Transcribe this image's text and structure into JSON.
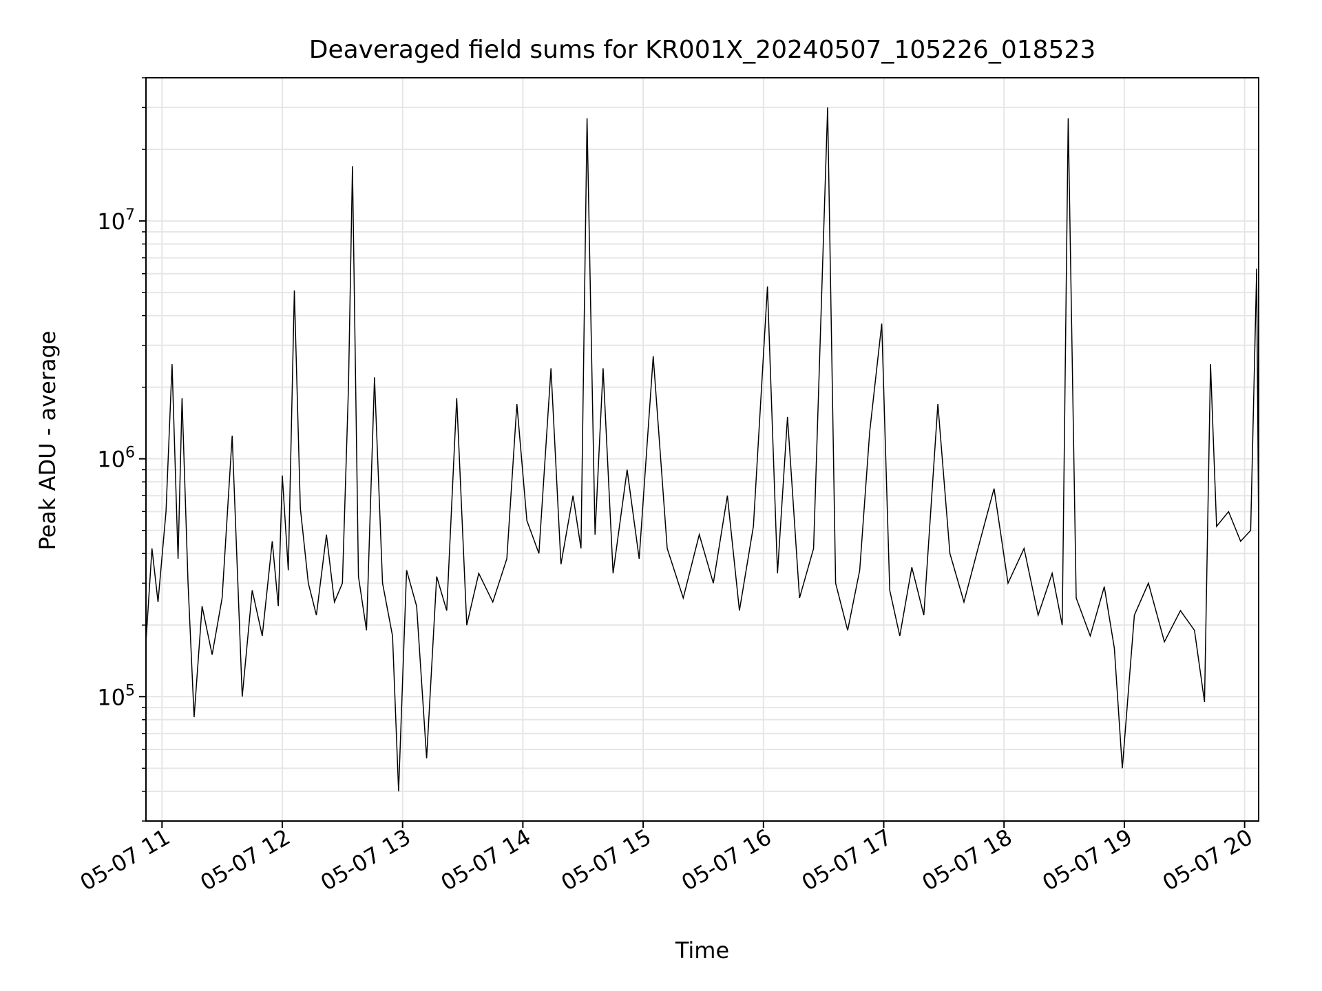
{
  "chart_data": {
    "type": "line",
    "title": "Deaveraged field sums for KR001X_20240507_105226_018523",
    "xlabel": "Time",
    "ylabel": "Peak ADU - average",
    "yscale": "log",
    "grid": true,
    "xlim": [
      "2024-05-07 10:52",
      "2024-05-07 20:07"
    ],
    "ylim": [
      30000,
      40000000
    ],
    "xticks": [
      {
        "t": "2024-05-07 11:00",
        "label": "05-07 11"
      },
      {
        "t": "2024-05-07 12:00",
        "label": "05-07 12"
      },
      {
        "t": "2024-05-07 13:00",
        "label": "05-07 13"
      },
      {
        "t": "2024-05-07 14:00",
        "label": "05-07 14"
      },
      {
        "t": "2024-05-07 15:00",
        "label": "05-07 15"
      },
      {
        "t": "2024-05-07 16:00",
        "label": "05-07 16"
      },
      {
        "t": "2024-05-07 17:00",
        "label": "05-07 17"
      },
      {
        "t": "2024-05-07 18:00",
        "label": "05-07 18"
      },
      {
        "t": "2024-05-07 19:00",
        "label": "05-07 19"
      },
      {
        "t": "2024-05-07 20:00",
        "label": "05-07 20"
      }
    ],
    "yticks": [
      {
        "v": 100000,
        "base": "10",
        "exp": "5"
      },
      {
        "v": 1000000,
        "base": "10",
        "exp": "6"
      },
      {
        "v": 10000000,
        "base": "10",
        "exp": "7"
      }
    ],
    "line_color": "#000000",
    "series": [
      {
        "points": [
          [
            "2024-05-07 10:52",
            170000
          ],
          [
            "2024-05-07 10:55",
            420000
          ],
          [
            "2024-05-07 10:58",
            250000
          ],
          [
            "2024-05-07 11:02",
            600000
          ],
          [
            "2024-05-07 11:05",
            2500000
          ],
          [
            "2024-05-07 11:08",
            380000
          ],
          [
            "2024-05-07 11:10",
            1800000
          ],
          [
            "2024-05-07 11:13",
            300000
          ],
          [
            "2024-05-07 11:16",
            82000
          ],
          [
            "2024-05-07 11:20",
            240000
          ],
          [
            "2024-05-07 11:25",
            150000
          ],
          [
            "2024-05-07 11:30",
            260000
          ],
          [
            "2024-05-07 11:35",
            1250000
          ],
          [
            "2024-05-07 11:40",
            100000
          ],
          [
            "2024-05-07 11:45",
            280000
          ],
          [
            "2024-05-07 11:50",
            180000
          ],
          [
            "2024-05-07 11:55",
            450000
          ],
          [
            "2024-05-07 11:58",
            240000
          ],
          [
            "2024-05-07 12:00",
            850000
          ],
          [
            "2024-05-07 12:03",
            340000
          ],
          [
            "2024-05-07 12:06",
            5100000
          ],
          [
            "2024-05-07 12:09",
            620000
          ],
          [
            "2024-05-07 12:13",
            300000
          ],
          [
            "2024-05-07 12:17",
            220000
          ],
          [
            "2024-05-07 12:22",
            480000
          ],
          [
            "2024-05-07 12:26",
            250000
          ],
          [
            "2024-05-07 12:30",
            300000
          ],
          [
            "2024-05-07 12:33",
            2000000
          ],
          [
            "2024-05-07 12:35",
            17000000
          ],
          [
            "2024-05-07 12:38",
            320000
          ],
          [
            "2024-05-07 12:42",
            190000
          ],
          [
            "2024-05-07 12:46",
            2200000
          ],
          [
            "2024-05-07 12:50",
            300000
          ],
          [
            "2024-05-07 12:55",
            180000
          ],
          [
            "2024-05-07 12:58",
            40000
          ],
          [
            "2024-05-07 13:02",
            340000
          ],
          [
            "2024-05-07 13:07",
            240000
          ],
          [
            "2024-05-07 13:12",
            55000
          ],
          [
            "2024-05-07 13:17",
            320000
          ],
          [
            "2024-05-07 13:22",
            230000
          ],
          [
            "2024-05-07 13:27",
            1800000
          ],
          [
            "2024-05-07 13:32",
            200000
          ],
          [
            "2024-05-07 13:38",
            330000
          ],
          [
            "2024-05-07 13:45",
            250000
          ],
          [
            "2024-05-07 13:52",
            380000
          ],
          [
            "2024-05-07 13:57",
            1700000
          ],
          [
            "2024-05-07 14:02",
            550000
          ],
          [
            "2024-05-07 14:08",
            400000
          ],
          [
            "2024-05-07 14:14",
            2400000
          ],
          [
            "2024-05-07 14:19",
            360000
          ],
          [
            "2024-05-07 14:25",
            700000
          ],
          [
            "2024-05-07 14:29",
            420000
          ],
          [
            "2024-05-07 14:32",
            27000000
          ],
          [
            "2024-05-07 14:36",
            480000
          ],
          [
            "2024-05-07 14:40",
            2400000
          ],
          [
            "2024-05-07 14:45",
            330000
          ],
          [
            "2024-05-07 14:52",
            900000
          ],
          [
            "2024-05-07 14:58",
            380000
          ],
          [
            "2024-05-07 15:05",
            2700000
          ],
          [
            "2024-05-07 15:12",
            420000
          ],
          [
            "2024-05-07 15:20",
            260000
          ],
          [
            "2024-05-07 15:28",
            480000
          ],
          [
            "2024-05-07 15:35",
            300000
          ],
          [
            "2024-05-07 15:42",
            700000
          ],
          [
            "2024-05-07 15:48",
            230000
          ],
          [
            "2024-05-07 15:55",
            520000
          ],
          [
            "2024-05-07 16:02",
            5300000
          ],
          [
            "2024-05-07 16:07",
            330000
          ],
          [
            "2024-05-07 16:12",
            1500000
          ],
          [
            "2024-05-07 16:18",
            260000
          ],
          [
            "2024-05-07 16:25",
            420000
          ],
          [
            "2024-05-07 16:32",
            30000000
          ],
          [
            "2024-05-07 16:36",
            300000
          ],
          [
            "2024-05-07 16:42",
            190000
          ],
          [
            "2024-05-07 16:48",
            340000
          ],
          [
            "2024-05-07 16:53",
            1300000
          ],
          [
            "2024-05-07 16:59",
            3700000
          ],
          [
            "2024-05-07 17:03",
            280000
          ],
          [
            "2024-05-07 17:08",
            180000
          ],
          [
            "2024-05-07 17:14",
            350000
          ],
          [
            "2024-05-07 17:20",
            220000
          ],
          [
            "2024-05-07 17:27",
            1700000
          ],
          [
            "2024-05-07 17:33",
            400000
          ],
          [
            "2024-05-07 17:40",
            250000
          ],
          [
            "2024-05-07 17:47",
            420000
          ],
          [
            "2024-05-07 17:55",
            750000
          ],
          [
            "2024-05-07 18:02",
            300000
          ],
          [
            "2024-05-07 18:10",
            420000
          ],
          [
            "2024-05-07 18:17",
            220000
          ],
          [
            "2024-05-07 18:24",
            330000
          ],
          [
            "2024-05-07 18:29",
            200000
          ],
          [
            "2024-05-07 18:32",
            27000000
          ],
          [
            "2024-05-07 18:36",
            260000
          ],
          [
            "2024-05-07 18:43",
            180000
          ],
          [
            "2024-05-07 18:50",
            290000
          ],
          [
            "2024-05-07 18:55",
            160000
          ],
          [
            "2024-05-07 18:59",
            50000
          ],
          [
            "2024-05-07 19:05",
            220000
          ],
          [
            "2024-05-07 19:12",
            300000
          ],
          [
            "2024-05-07 19:20",
            170000
          ],
          [
            "2024-05-07 19:28",
            230000
          ],
          [
            "2024-05-07 19:35",
            190000
          ],
          [
            "2024-05-07 19:40",
            95000
          ],
          [
            "2024-05-07 19:43",
            2500000
          ],
          [
            "2024-05-07 19:46",
            520000
          ],
          [
            "2024-05-07 19:52",
            600000
          ],
          [
            "2024-05-07 19:58",
            450000
          ],
          [
            "2024-05-07 20:03",
            500000
          ],
          [
            "2024-05-07 20:06",
            6300000
          ],
          [
            "2024-05-07 20:07",
            480000
          ]
        ]
      }
    ]
  }
}
